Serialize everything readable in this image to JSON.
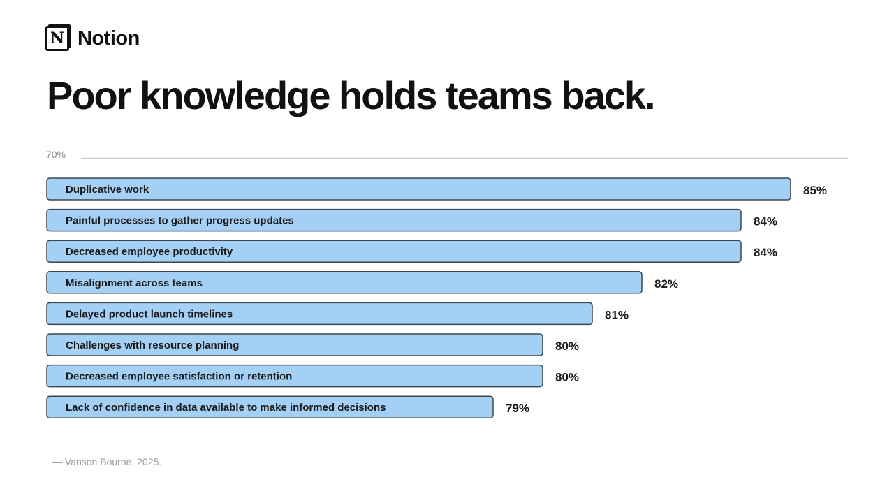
{
  "brand": {
    "name": "Notion",
    "logo_letter": "N"
  },
  "title": "Poor knowledge holds teams back.",
  "source": "— Vanson Bourne, 2025.",
  "chart_data": {
    "type": "bar",
    "orientation": "horizontal",
    "title": "Poor knowledge holds teams back.",
    "categories": [
      "Duplicative work",
      "Painful processes to gather progress updates",
      "Decreased employee productivity",
      "Misalignment across teams",
      "Delayed product launch timelines",
      "Challenges with resource planning",
      "Decreased employee satisfaction or retention",
      "Lack of confidence in data available to make informed decisions"
    ],
    "values": [
      85,
      84,
      84,
      82,
      81,
      80,
      80,
      79
    ],
    "labels": [
      "85%",
      "84%",
      "84%",
      "82%",
      "81%",
      "80%",
      "80%",
      "79%"
    ],
    "axis_tick": "70%",
    "xlim": [
      70,
      85
    ],
    "colors": {
      "bar": "#a4d0f6",
      "border": "#3b4651",
      "axis": "#cccccc"
    }
  }
}
